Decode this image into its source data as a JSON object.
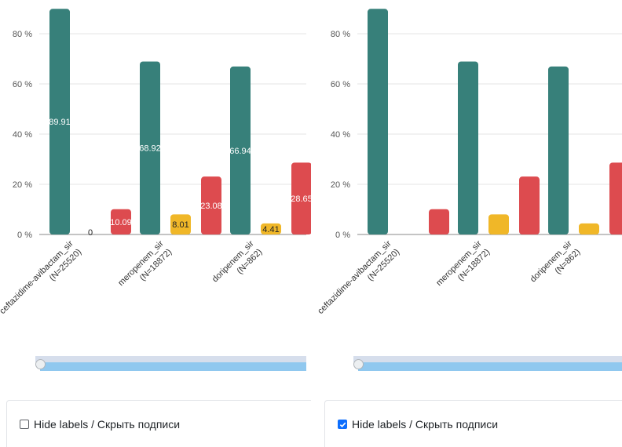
{
  "chart_data": [
    {
      "type": "bar",
      "ylim": [
        0,
        90
      ],
      "y_ticks": [
        "0 %",
        "20 %",
        "40 %",
        "60 %",
        "80 %"
      ],
      "categories": [
        {
          "name": "ceftazidime-avibactam_sir",
          "n": "(N=25520)"
        },
        {
          "name": "meropenem_sir",
          "n": "(N=18872)"
        },
        {
          "name": "doripenem_sir",
          "n": "(N=862)"
        }
      ],
      "series": [
        {
          "color": "#37807a",
          "values": [
            89.91,
            68.92,
            66.94
          ],
          "labels": [
            "89.91",
            "68.92",
            "66.94"
          ]
        },
        {
          "color": "#f0b728",
          "values": [
            0,
            8.01,
            4.41
          ],
          "labels": [
            "0",
            "8.01",
            "4.41"
          ]
        },
        {
          "color": "#dd4b4f",
          "values": [
            10.09,
            23.08,
            28.65
          ],
          "labels": [
            "10.09",
            "23.08",
            "28.65"
          ]
        }
      ],
      "show_labels": true
    },
    {
      "type": "bar",
      "ylim": [
        0,
        90
      ],
      "y_ticks": [
        "0 %",
        "20 %",
        "40 %",
        "60 %",
        "80 %"
      ],
      "categories": [
        {
          "name": "ceftazidime-avibactam_sir",
          "n": "(N=25520)"
        },
        {
          "name": "meropenem_sir",
          "n": "(N=18872)"
        },
        {
          "name": "doripenem_sir",
          "n": "(N=862)"
        }
      ],
      "series": [
        {
          "color": "#37807a",
          "values": [
            89.91,
            68.92,
            66.94
          ]
        },
        {
          "color": "#f0b728",
          "values": [
            0,
            8.01,
            4.41
          ]
        },
        {
          "color": "#dd4b4f",
          "values": [
            10.09,
            23.08,
            28.65
          ]
        }
      ],
      "show_labels": false
    }
  ],
  "controls": {
    "left": {
      "hide_labels_text": "Hide labels / Скрыть подписи",
      "checked": false
    },
    "right": {
      "hide_labels_text": "Hide labels / Скрыть подписи",
      "checked": true
    }
  },
  "icons": {
    "checkbox": "checkbox-icon",
    "check": "check-icon"
  }
}
